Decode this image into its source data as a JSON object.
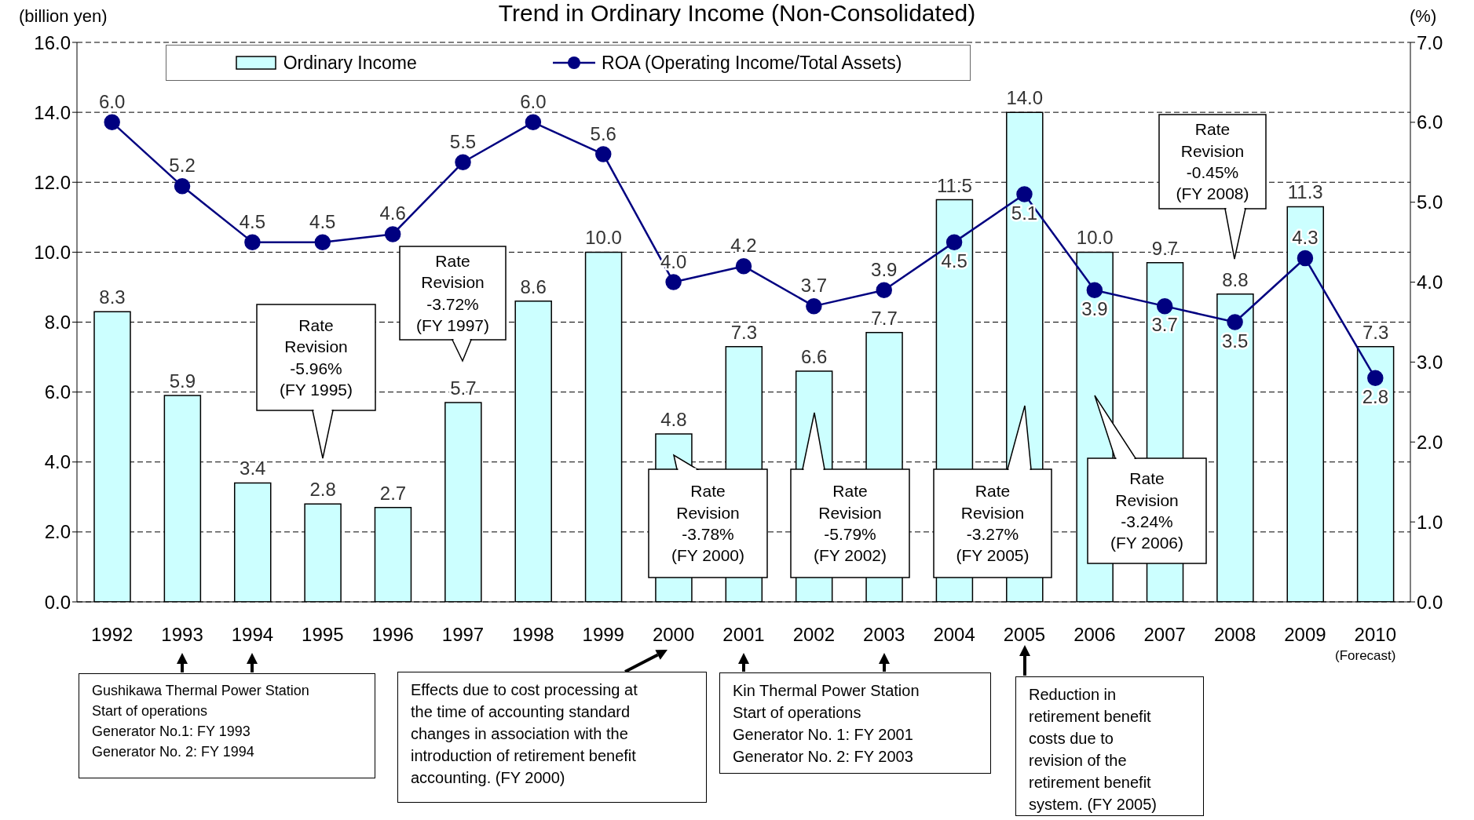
{
  "chart_data": {
    "type": "bar",
    "title": "Trend in Ordinary Income (Non-Consolidated)",
    "ylabel": "(billion yen)",
    "y2label": "(%)",
    "categories": [
      "1992",
      "1993",
      "1994",
      "1995",
      "1996",
      "1997",
      "1998",
      "1999",
      "2000",
      "2001",
      "2002",
      "2003",
      "2004",
      "2005",
      "2006",
      "2007",
      "2008",
      "2009",
      "2010"
    ],
    "series": [
      {
        "name": "Ordinary Income",
        "color": "#ccffff",
        "values": [
          8.3,
          5.9,
          3.4,
          2.8,
          2.7,
          5.7,
          8.6,
          10.0,
          4.8,
          7.3,
          6.6,
          7.7,
          11.5,
          14.0,
          10.0,
          9.7,
          8.8,
          11.3,
          7.3
        ],
        "value_labels": [
          "8.3",
          "5.9",
          "3.4",
          "2.8",
          "2.7",
          "5.7",
          "8.6",
          "10.0",
          "4.8",
          "7.3",
          "6.6",
          "7.7",
          "11.5",
          "14.0",
          "10.0",
          "9.7",
          "8.8",
          "11.3",
          "7.3"
        ]
      },
      {
        "name": "ROA (Operating Income/Total Assets)",
        "type": "line",
        "axis": "y2",
        "color": "#000080",
        "marker": "circle",
        "values": [
          6.0,
          5.2,
          4.5,
          4.5,
          4.6,
          5.5,
          6.0,
          5.6,
          4.0,
          4.2,
          3.7,
          3.9,
          4.5,
          5.1,
          3.9,
          3.7,
          3.5,
          4.3,
          2.8
        ],
        "value_labels": [
          "6.0",
          "5.2",
          "4.5",
          "4.5",
          "4.6",
          "5.5",
          "6.0",
          "5.6",
          "4.0",
          "4.2",
          "3.7",
          "3.9",
          "4.5",
          "5.1",
          "3.9",
          "3.7",
          "3.5",
          "4.3",
          "2.8"
        ]
      }
    ],
    "ylim": [
      0,
      16
    ],
    "yticks": [
      {
        "value": 0,
        "label": "0.0"
      },
      {
        "value": 2,
        "label": "2.0"
      },
      {
        "value": 4,
        "label": "4.0"
      },
      {
        "value": 6,
        "label": "6.0"
      },
      {
        "value": 8,
        "label": "8.0"
      },
      {
        "value": 10,
        "label": "10.0"
      },
      {
        "value": 12,
        "label": "12.0"
      },
      {
        "value": 14,
        "label": "14.0"
      },
      {
        "value": 16,
        "label": "16.0"
      }
    ],
    "y2lim": [
      0,
      7
    ],
    "y2ticks": [
      {
        "value": 0,
        "label": "0.0"
      },
      {
        "value": 1,
        "label": "1.0"
      },
      {
        "value": 2,
        "label": "2.0"
      },
      {
        "value": 3,
        "label": "3.0"
      },
      {
        "value": 4,
        "label": "4.0"
      },
      {
        "value": 5,
        "label": "5.0"
      },
      {
        "value": 6,
        "label": "6.0"
      },
      {
        "value": 7,
        "label": "7.0"
      }
    ],
    "grid": "y",
    "legend": "top",
    "annotations": [
      "Rate\nRevision\n-5.96%\n(FY 1995)",
      "Rate\nRevision\n-3.72%\n(FY 1997)",
      "Rate\nRevision\n-3.78%\n(FY 2000)",
      "Rate\nRevision\n-5.79%\n(FY 2002)",
      "Rate\nRevision\n-3.27%\n(FY 2005)",
      "Rate\nRevision\n-3.24%\n(FY 2006)",
      "Rate\nRevision\n-0.45%\n(FY 2008)",
      "Gushikawa Thermal Power Station\nStart of operations\nGenerator No.1: FY 1993\nGenerator No. 2: FY 1994",
      "Effects due to cost processing at\nthe time of accounting standard\nchanges in association with the\nintroduction of retirement benefit\naccounting. (FY 2000)",
      "Kin Thermal Power Station\nStart of operations\nGenerator No. 1: FY 2001\nGenerator No. 2: FY 2003",
      "Reduction in\nretirement benefit\ncosts due to\nrevision of the\nretirement benefit\nsystem. (FY 2005)",
      "(Forecast)"
    ]
  }
}
